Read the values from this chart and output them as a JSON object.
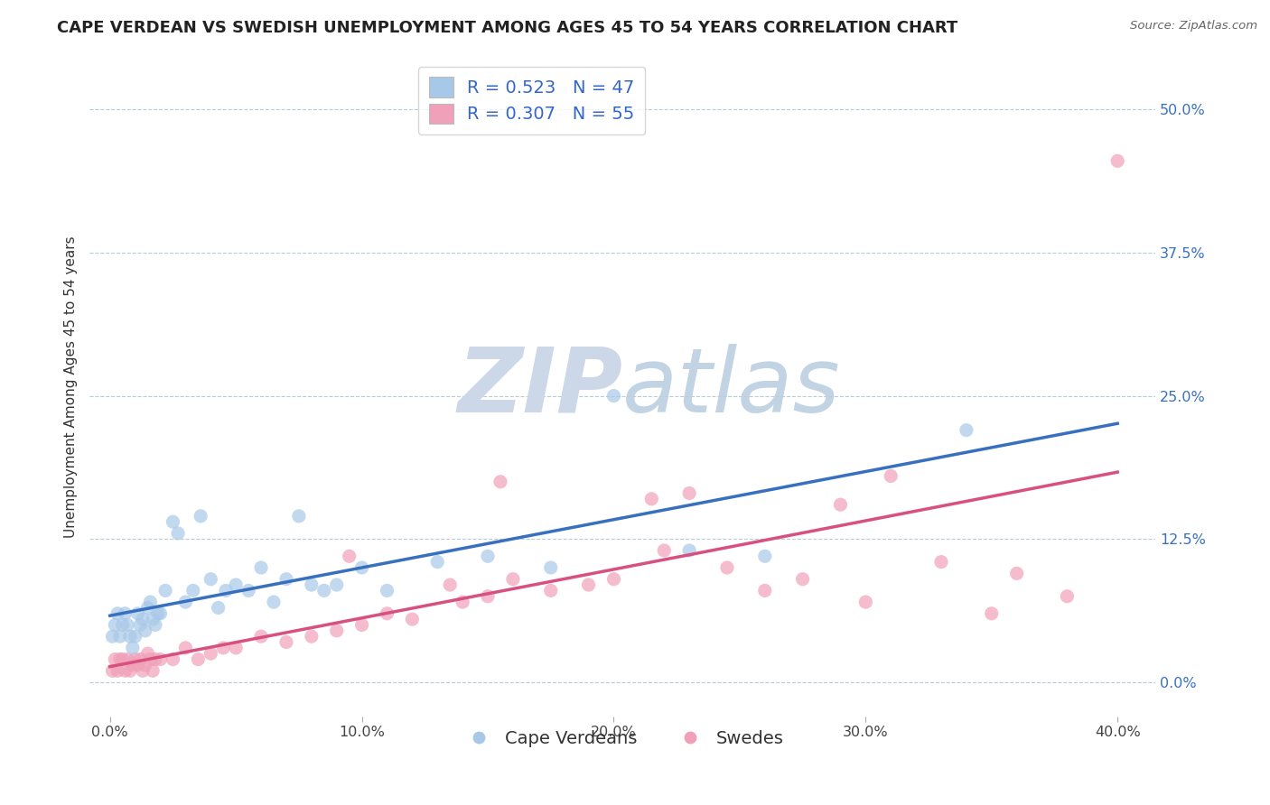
{
  "title": "CAPE VERDEAN VS SWEDISH UNEMPLOYMENT AMONG AGES 45 TO 54 YEARS CORRELATION CHART",
  "source": "Source: ZipAtlas.com",
  "ylabel": "Unemployment Among Ages 45 to 54 years",
  "xlabel_ticks": [
    "0.0%",
    "10.0%",
    "20.0%",
    "30.0%",
    "40.0%"
  ],
  "xlabel_vals": [
    0.0,
    0.1,
    0.2,
    0.3,
    0.4
  ],
  "ylabel_ticks": [
    "0.0%",
    "12.5%",
    "25.0%",
    "37.5%",
    "50.0%"
  ],
  "ylabel_vals": [
    0.0,
    0.125,
    0.25,
    0.375,
    0.5
  ],
  "xlim": [
    -0.008,
    0.415
  ],
  "ylim": [
    -0.03,
    0.545
  ],
  "R_cape": 0.523,
  "N_cape": 47,
  "R_swede": 0.307,
  "N_swede": 55,
  "cape_color": "#a8c8e8",
  "swede_color": "#f0a0b8",
  "cape_line_color": "#3870c0",
  "swede_line_color": "#d85080",
  "watermark_zip": "ZIP",
  "watermark_atlas": "atlas",
  "watermark_color": "#ccd8e8",
  "legend_color": "#3366cc",
  "background_color": "#ffffff",
  "grid_color": "#b8ccd8",
  "title_fontsize": 13,
  "label_fontsize": 11,
  "tick_fontsize": 11.5,
  "legend_fontsize": 14,
  "cape_verdeans_x": [
    0.001,
    0.002,
    0.003,
    0.004,
    0.005,
    0.006,
    0.007,
    0.008,
    0.009,
    0.01,
    0.011,
    0.012,
    0.013,
    0.014,
    0.015,
    0.016,
    0.017,
    0.018,
    0.019,
    0.02,
    0.022,
    0.025,
    0.027,
    0.03,
    0.033,
    0.036,
    0.04,
    0.043,
    0.046,
    0.05,
    0.055,
    0.06,
    0.065,
    0.07,
    0.075,
    0.08,
    0.085,
    0.09,
    0.1,
    0.11,
    0.13,
    0.15,
    0.175,
    0.2,
    0.23,
    0.26,
    0.34
  ],
  "cape_verdeans_y": [
    0.04,
    0.05,
    0.06,
    0.04,
    0.05,
    0.06,
    0.05,
    0.04,
    0.03,
    0.04,
    0.06,
    0.05,
    0.055,
    0.045,
    0.065,
    0.07,
    0.055,
    0.05,
    0.06,
    0.06,
    0.08,
    0.14,
    0.13,
    0.07,
    0.08,
    0.145,
    0.09,
    0.065,
    0.08,
    0.085,
    0.08,
    0.1,
    0.07,
    0.09,
    0.145,
    0.085,
    0.08,
    0.085,
    0.1,
    0.08,
    0.105,
    0.11,
    0.1,
    0.25,
    0.115,
    0.11,
    0.22
  ],
  "swedes_x": [
    0.001,
    0.002,
    0.003,
    0.004,
    0.005,
    0.006,
    0.007,
    0.008,
    0.009,
    0.01,
    0.011,
    0.012,
    0.013,
    0.014,
    0.015,
    0.016,
    0.017,
    0.018,
    0.02,
    0.025,
    0.03,
    0.035,
    0.04,
    0.045,
    0.05,
    0.06,
    0.07,
    0.08,
    0.09,
    0.1,
    0.11,
    0.12,
    0.14,
    0.15,
    0.16,
    0.175,
    0.19,
    0.2,
    0.215,
    0.23,
    0.245,
    0.26,
    0.275,
    0.29,
    0.31,
    0.33,
    0.35,
    0.36,
    0.38,
    0.4,
    0.095,
    0.135,
    0.155,
    0.22,
    0.3
  ],
  "swedes_y": [
    0.01,
    0.02,
    0.01,
    0.02,
    0.02,
    0.01,
    0.02,
    0.01,
    0.015,
    0.02,
    0.015,
    0.02,
    0.01,
    0.015,
    0.025,
    0.02,
    0.01,
    0.02,
    0.02,
    0.02,
    0.03,
    0.02,
    0.025,
    0.03,
    0.03,
    0.04,
    0.035,
    0.04,
    0.045,
    0.05,
    0.06,
    0.055,
    0.07,
    0.075,
    0.09,
    0.08,
    0.085,
    0.09,
    0.16,
    0.165,
    0.1,
    0.08,
    0.09,
    0.155,
    0.18,
    0.105,
    0.06,
    0.095,
    0.075,
    0.455,
    0.11,
    0.085,
    0.175,
    0.115,
    0.07
  ]
}
